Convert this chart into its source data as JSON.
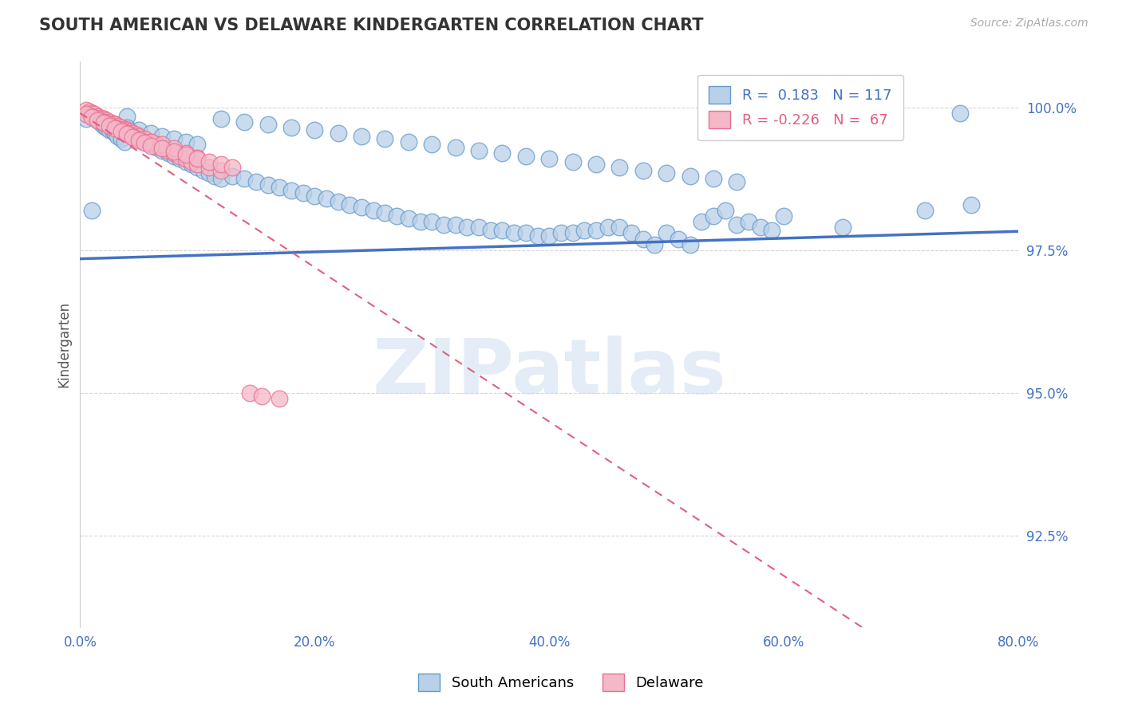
{
  "title": "SOUTH AMERICAN VS DELAWARE KINDERGARTEN CORRELATION CHART",
  "source_text": "Source: ZipAtlas.com",
  "ylabel": "Kindergarten",
  "xlim": [
    0.0,
    0.8
  ],
  "ylim": [
    0.909,
    1.008
  ],
  "yticks": [
    0.925,
    0.95,
    0.975,
    1.0
  ],
  "ytick_labels": [
    "92.5%",
    "95.0%",
    "97.5%",
    "100.0%"
  ],
  "xticks": [
    0.0,
    0.2,
    0.4,
    0.6,
    0.8
  ],
  "xtick_labels": [
    "0.0%",
    "20.0%",
    "40.0%",
    "60.0%",
    "80.0%"
  ],
  "blue_color": "#b8d0e8",
  "blue_edge": "#6699cc",
  "pink_color": "#f4b8c8",
  "pink_edge": "#e87090",
  "trend_blue": "#4472c4",
  "trend_pink": "#e06080",
  "trend_blue_intercept": 0.9735,
  "trend_blue_slope": 0.006,
  "trend_pink_intercept": 0.999,
  "trend_pink_slope": -0.135,
  "legend_r_blue": "0.183",
  "legend_n_blue": "117",
  "legend_r_pink": "-0.226",
  "legend_n_pink": "67",
  "watermark": "ZIPatlas",
  "blue_x": [
    0.005,
    0.01,
    0.012,
    0.015,
    0.018,
    0.02,
    0.022,
    0.025,
    0.028,
    0.03,
    0.032,
    0.035,
    0.038,
    0.04,
    0.042,
    0.045,
    0.048,
    0.05,
    0.055,
    0.06,
    0.065,
    0.07,
    0.075,
    0.08,
    0.085,
    0.09,
    0.095,
    0.1,
    0.105,
    0.11,
    0.115,
    0.12,
    0.13,
    0.14,
    0.15,
    0.16,
    0.17,
    0.18,
    0.19,
    0.2,
    0.21,
    0.22,
    0.23,
    0.24,
    0.25,
    0.26,
    0.27,
    0.28,
    0.29,
    0.3,
    0.31,
    0.32,
    0.33,
    0.34,
    0.35,
    0.36,
    0.37,
    0.38,
    0.39,
    0.4,
    0.41,
    0.42,
    0.43,
    0.44,
    0.45,
    0.46,
    0.47,
    0.48,
    0.49,
    0.5,
    0.51,
    0.52,
    0.53,
    0.54,
    0.55,
    0.56,
    0.57,
    0.58,
    0.59,
    0.6,
    0.01,
    0.02,
    0.03,
    0.04,
    0.05,
    0.06,
    0.07,
    0.08,
    0.09,
    0.1,
    0.12,
    0.14,
    0.16,
    0.18,
    0.2,
    0.22,
    0.24,
    0.26,
    0.28,
    0.3,
    0.32,
    0.34,
    0.36,
    0.38,
    0.4,
    0.42,
    0.44,
    0.46,
    0.48,
    0.5,
    0.52,
    0.54,
    0.56,
    0.65,
    0.72,
    0.75,
    0.76
  ],
  "blue_y": [
    0.998,
    0.999,
    0.9985,
    0.9978,
    0.9972,
    0.9968,
    0.9965,
    0.996,
    0.9958,
    0.9955,
    0.995,
    0.9945,
    0.994,
    0.9985,
    0.996,
    0.9955,
    0.995,
    0.9945,
    0.994,
    0.9935,
    0.993,
    0.9925,
    0.992,
    0.9915,
    0.991,
    0.9905,
    0.99,
    0.9895,
    0.989,
    0.9885,
    0.988,
    0.9875,
    0.988,
    0.9875,
    0.987,
    0.9865,
    0.986,
    0.9855,
    0.985,
    0.9845,
    0.984,
    0.9835,
    0.983,
    0.9825,
    0.982,
    0.9815,
    0.981,
    0.9805,
    0.98,
    0.98,
    0.9795,
    0.9795,
    0.979,
    0.979,
    0.9785,
    0.9785,
    0.978,
    0.978,
    0.9775,
    0.9775,
    0.978,
    0.978,
    0.9785,
    0.9785,
    0.979,
    0.979,
    0.978,
    0.977,
    0.976,
    0.978,
    0.977,
    0.976,
    0.98,
    0.981,
    0.982,
    0.9795,
    0.98,
    0.979,
    0.9785,
    0.981,
    0.982,
    0.9975,
    0.997,
    0.9965,
    0.996,
    0.9955,
    0.995,
    0.9945,
    0.994,
    0.9935,
    0.998,
    0.9975,
    0.997,
    0.9965,
    0.996,
    0.9955,
    0.995,
    0.9945,
    0.994,
    0.9935,
    0.993,
    0.9925,
    0.992,
    0.9915,
    0.991,
    0.9905,
    0.99,
    0.9895,
    0.989,
    0.9885,
    0.988,
    0.9875,
    0.987,
    0.979,
    0.982,
    0.999,
    0.983
  ],
  "pink_x": [
    0.005,
    0.008,
    0.01,
    0.012,
    0.015,
    0.018,
    0.02,
    0.022,
    0.025,
    0.028,
    0.03,
    0.032,
    0.035,
    0.038,
    0.04,
    0.042,
    0.045,
    0.048,
    0.05,
    0.055,
    0.06,
    0.065,
    0.07,
    0.075,
    0.08,
    0.085,
    0.09,
    0.095,
    0.1,
    0.11,
    0.12,
    0.01,
    0.015,
    0.02,
    0.025,
    0.03,
    0.035,
    0.04,
    0.045,
    0.05,
    0.06,
    0.07,
    0.08,
    0.09,
    0.1,
    0.005,
    0.01,
    0.015,
    0.02,
    0.025,
    0.03,
    0.035,
    0.04,
    0.045,
    0.05,
    0.055,
    0.06,
    0.07,
    0.08,
    0.09,
    0.1,
    0.11,
    0.12,
    0.13,
    0.145,
    0.155,
    0.17
  ],
  "pink_y": [
    0.9995,
    0.9993,
    0.999,
    0.9988,
    0.9985,
    0.9982,
    0.998,
    0.9978,
    0.9975,
    0.9972,
    0.997,
    0.9968,
    0.9965,
    0.9962,
    0.996,
    0.9958,
    0.9955,
    0.9952,
    0.995,
    0.9945,
    0.994,
    0.9935,
    0.993,
    0.9925,
    0.992,
    0.9915,
    0.991,
    0.9905,
    0.99,
    0.9895,
    0.989,
    0.9985,
    0.998,
    0.9975,
    0.997,
    0.9965,
    0.996,
    0.9955,
    0.995,
    0.9945,
    0.994,
    0.9935,
    0.9928,
    0.992,
    0.9912,
    0.9988,
    0.9983,
    0.9978,
    0.9973,
    0.9968,
    0.9963,
    0.9958,
    0.9953,
    0.9948,
    0.9943,
    0.9938,
    0.9933,
    0.9928,
    0.9923,
    0.9918,
    0.991,
    0.9905,
    0.99,
    0.9895,
    0.95,
    0.9495,
    0.949
  ]
}
